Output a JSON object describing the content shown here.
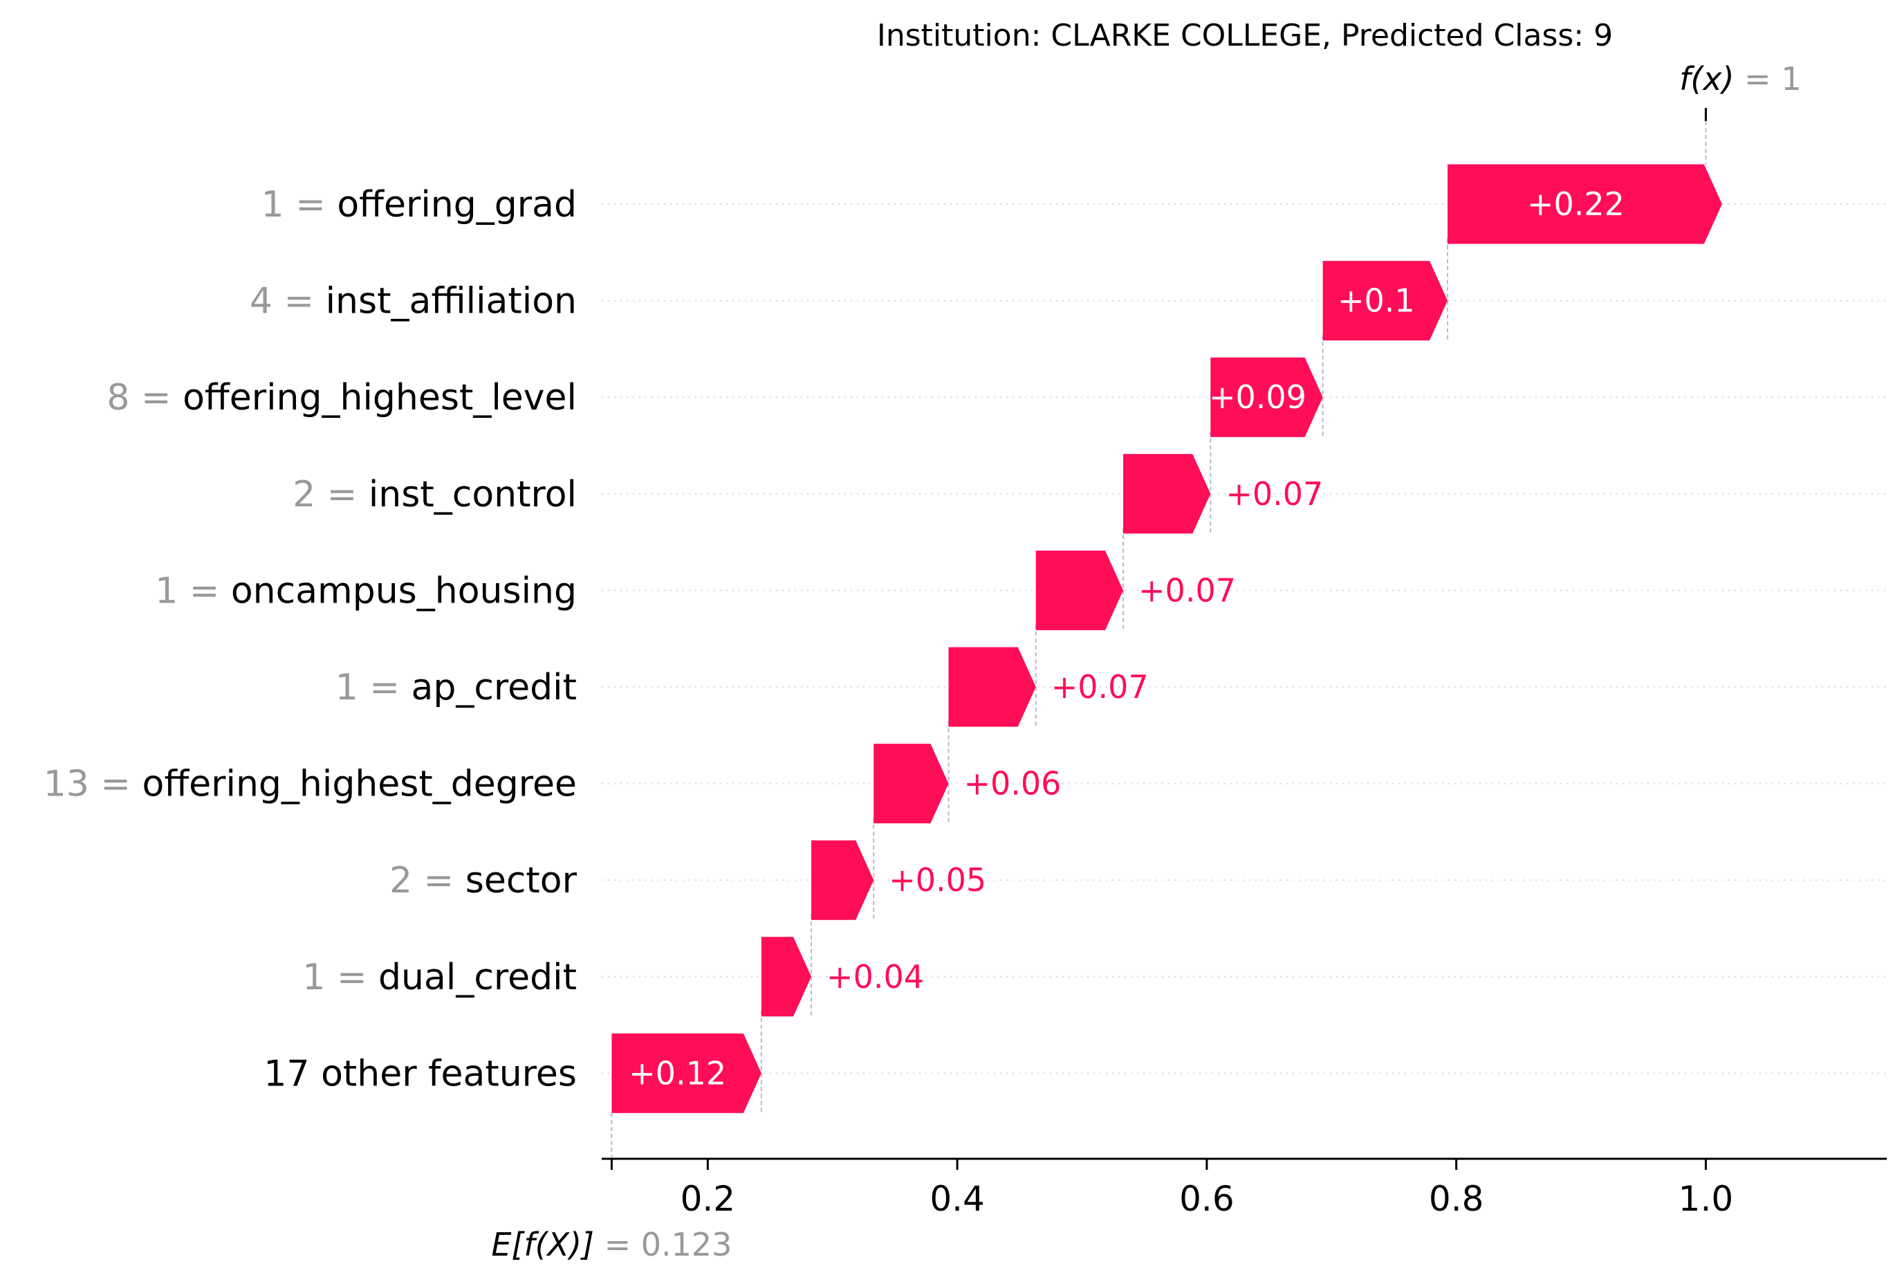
{
  "chart_data": {
    "type": "waterfall",
    "title": "Institution: CLARKE COLLEGE, Predicted Class: 9",
    "base_value_label": "E[f(X)]",
    "base_value": 0.123,
    "base_value_text": "= 0.123",
    "output_value_label": "f(x)",
    "output_value": 1,
    "output_value_text": "= 1",
    "xlim": [
      0.115,
      1.145
    ],
    "xticks": [
      0.2,
      0.4,
      0.6,
      0.8,
      1.0
    ],
    "xtick_labels": [
      "0.2",
      "0.4",
      "0.6",
      "0.8",
      "1.0"
    ],
    "grid": true,
    "positive_color": "#ff0d57",
    "features": [
      {
        "value": "1",
        "name": "offering_grad",
        "contribution": 0.22,
        "label": "+0.22"
      },
      {
        "value": "4",
        "name": "inst_affiliation",
        "contribution": 0.1,
        "label": "+0.1"
      },
      {
        "value": "8",
        "name": "offering_highest_level",
        "contribution": 0.09,
        "label": "+0.09"
      },
      {
        "value": "2",
        "name": "inst_control",
        "contribution": 0.07,
        "label": "+0.07"
      },
      {
        "value": "1",
        "name": "oncampus_housing",
        "contribution": 0.07,
        "label": "+0.07"
      },
      {
        "value": "1",
        "name": "ap_credit",
        "contribution": 0.07,
        "label": "+0.07"
      },
      {
        "value": "13",
        "name": "offering_highest_degree",
        "contribution": 0.06,
        "label": "+0.06"
      },
      {
        "value": "2",
        "name": "sector",
        "contribution": 0.05,
        "label": "+0.05"
      },
      {
        "value": "1",
        "name": "dual_credit",
        "contribution": 0.04,
        "label": "+0.04"
      },
      {
        "value": "",
        "name": "17 other features",
        "contribution": 0.12,
        "label": "+0.12"
      }
    ]
  }
}
